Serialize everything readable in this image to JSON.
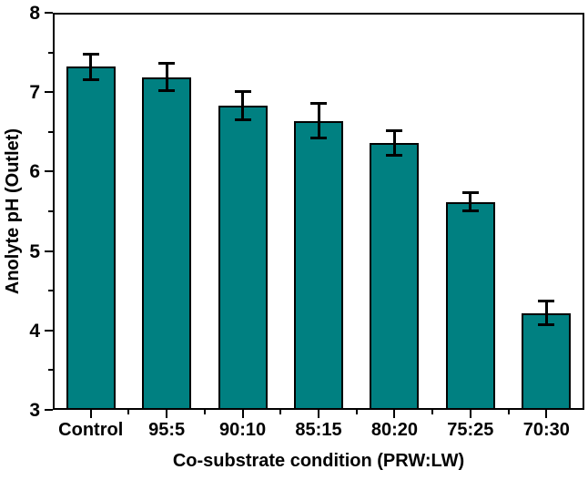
{
  "chart_data": {
    "type": "bar",
    "title": "",
    "xlabel": "Co-substrate condition (PRW:LW)",
    "ylabel": "Anolyte pH (Outlet)",
    "categories": [
      "Control",
      "95:5",
      "90:10",
      "85:15",
      "80:20",
      "75:25",
      "70:30"
    ],
    "values": [
      7.32,
      7.19,
      6.83,
      6.64,
      6.36,
      5.62,
      4.22
    ],
    "errors": [
      0.16,
      0.17,
      0.18,
      0.22,
      0.16,
      0.11,
      0.15
    ],
    "ylim": [
      3,
      8
    ],
    "yticks_major": [
      3,
      4,
      5,
      6,
      7,
      8
    ],
    "yticks_minor": [
      3.5,
      4.5,
      5.5,
      6.5,
      7.5
    ],
    "grid": false,
    "legend_position": "none",
    "bar_color": "#008081",
    "bar_edge_color": "#000000",
    "error_bar_color": "#000000",
    "axis_color": "#000000",
    "background_color": "#ffffff"
  }
}
